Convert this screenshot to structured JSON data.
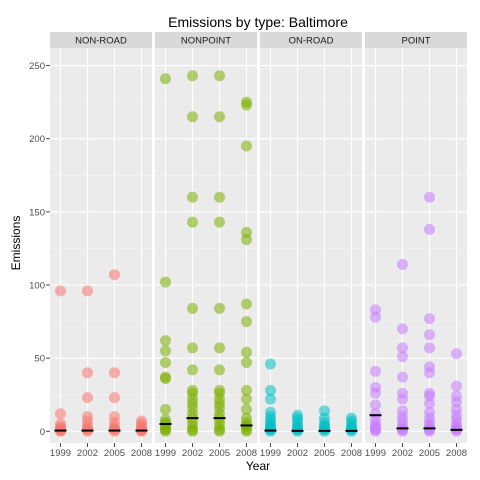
{
  "chart_data": {
    "type": "scatter",
    "title": "Emissions by type: Baltimore",
    "xlabel": "Year",
    "ylabel": "Emissions",
    "ylim": [
      -8,
      262
    ],
    "yticks": [
      0,
      50,
      100,
      150,
      200,
      250
    ],
    "x": [
      "1999",
      "2002",
      "2005",
      "2008"
    ],
    "grid": true,
    "legend": "none",
    "panels": [
      {
        "name": "NON-ROAD",
        "color": "#F8766D",
        "medians": [
          0.5,
          0.5,
          0.5,
          0.5
        ],
        "points": {
          "1999": [
            96,
            12,
            5,
            3,
            2,
            1,
            0.5,
            0
          ],
          "2002": [
            96,
            40,
            23,
            10,
            7,
            4,
            2,
            1,
            0
          ],
          "2005": [
            107,
            40,
            23,
            10,
            6,
            3,
            2,
            1,
            0
          ],
          "2008": [
            7,
            5,
            3,
            2,
            1,
            0.5,
            0
          ]
        }
      },
      {
        "name": "NONPOINT",
        "color": "#7CAE00",
        "medians": [
          5,
          9,
          9,
          4
        ],
        "points": {
          "1999": [
            241,
            102,
            62,
            55,
            47,
            37,
            36,
            15,
            8,
            6,
            5,
            3,
            2,
            1,
            0
          ],
          "2002": [
            243,
            215,
            160,
            143,
            84,
            57,
            42,
            28,
            26,
            22,
            19,
            16,
            12,
            9,
            6,
            3,
            1,
            0
          ],
          "2005": [
            243,
            215,
            160,
            143,
            84,
            57,
            42,
            28,
            26,
            22,
            19,
            16,
            12,
            9,
            6,
            3,
            1,
            0
          ],
          "2008": [
            225,
            223,
            195,
            136,
            131,
            87,
            75,
            54,
            47,
            28,
            22,
            15,
            9,
            6,
            4,
            3,
            1,
            0
          ]
        }
      },
      {
        "name": "ON-ROAD",
        "color": "#00BFC4",
        "medians": [
          0.5,
          0.3,
          0.3,
          0.3
        ],
        "points": {
          "1999": [
            46,
            28,
            22,
            13,
            10,
            8,
            6,
            4,
            3,
            2,
            1,
            0
          ],
          "2002": [
            11,
            9,
            7,
            5,
            3,
            2,
            1,
            0
          ],
          "2005": [
            14,
            9,
            6,
            4,
            3,
            2,
            1,
            0
          ],
          "2008": [
            9,
            7,
            5,
            3,
            2,
            1,
            0
          ]
        }
      },
      {
        "name": "POINT",
        "color": "#C77CFF",
        "medians": [
          11,
          2,
          2,
          1
        ],
        "points": {
          "1999": [
            83,
            78,
            41,
            30,
            26,
            18,
            12,
            8,
            5,
            3,
            2,
            1,
            0
          ],
          "2002": [
            114,
            70,
            57,
            51,
            37,
            26,
            22,
            14,
            10,
            7,
            4,
            2,
            1,
            0
          ],
          "2005": [
            160,
            138,
            77,
            66,
            57,
            44,
            40,
            26,
            24,
            19,
            13,
            9,
            6,
            4,
            2,
            1,
            0
          ],
          "2008": [
            53,
            31,
            24,
            20,
            15,
            11,
            8,
            5,
            3,
            2,
            1,
            0
          ]
        }
      }
    ]
  }
}
